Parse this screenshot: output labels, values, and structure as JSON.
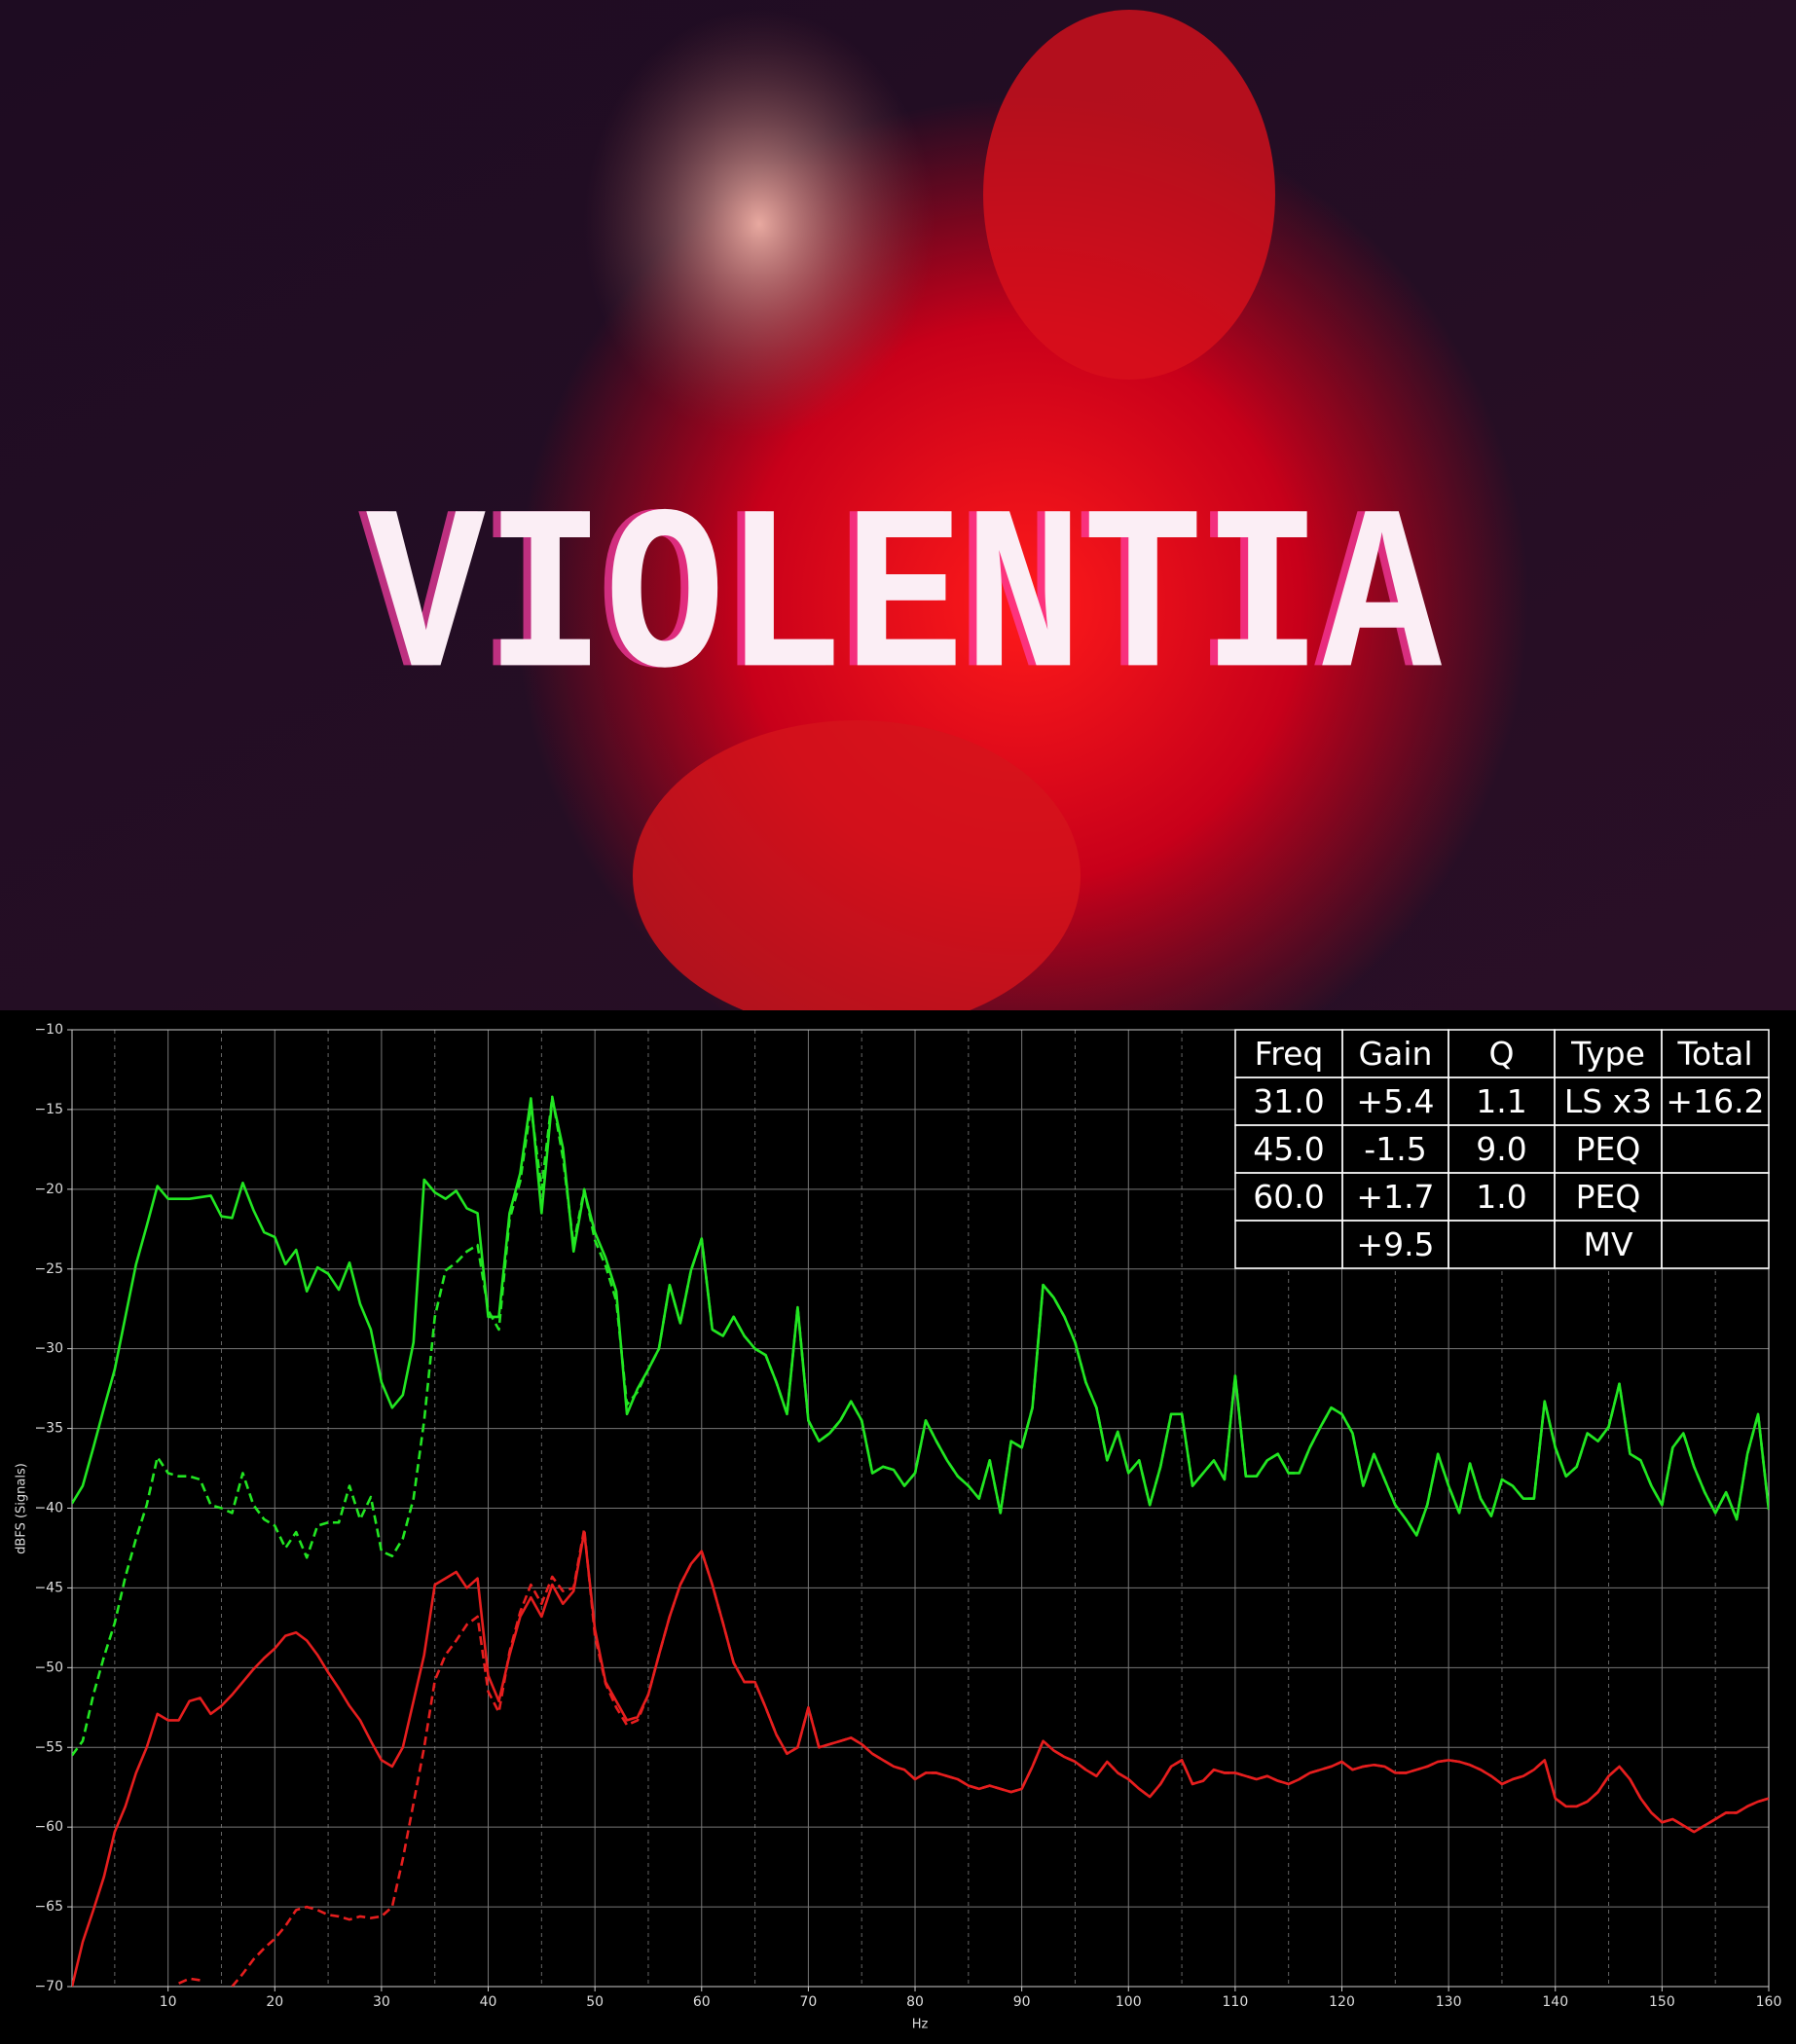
{
  "poster": {
    "title": "VIOLENTIA"
  },
  "chart_data": {
    "type": "line",
    "xlabel": "Hz",
    "ylabel": "dBFS (Signals)",
    "x": [
      1,
      2,
      3,
      4,
      5,
      6,
      7,
      8,
      9,
      10,
      11,
      12,
      13,
      14,
      15,
      16,
      17,
      18,
      19,
      20,
      21,
      22,
      23,
      24,
      25,
      26,
      27,
      28,
      29,
      30,
      31,
      32,
      33,
      34,
      35,
      36,
      37,
      38,
      39,
      40,
      41,
      42,
      43,
      44,
      45,
      46,
      47,
      48,
      49,
      50,
      51,
      52,
      53,
      54,
      55,
      56,
      57,
      58,
      59,
      60,
      61,
      62,
      63,
      64,
      65,
      66,
      67,
      68,
      69,
      70,
      71,
      72,
      73,
      74,
      75,
      76,
      77,
      78,
      79,
      80,
      81,
      82,
      83,
      84,
      85,
      86,
      87,
      88,
      89,
      90,
      91,
      92,
      93,
      94,
      95,
      96,
      97,
      98,
      99,
      100,
      101,
      102,
      103,
      104,
      105,
      106,
      107,
      108,
      109,
      110,
      111,
      112,
      113,
      114,
      115,
      116,
      117,
      118,
      119,
      120,
      121,
      122,
      123,
      124,
      125,
      126,
      127,
      128,
      129,
      130,
      131,
      132,
      133,
      134,
      135,
      136,
      137,
      138,
      139,
      140,
      141,
      142,
      143,
      144,
      145,
      146,
      147,
      148,
      149,
      150,
      151,
      152,
      153,
      154,
      155,
      156,
      157,
      158,
      159,
      160
    ],
    "series": [
      {
        "color": "#22e622",
        "style": "solid",
        "values": [
          -39.7,
          -38.6,
          -36.2,
          -33.7,
          -31.3,
          -28,
          -24.7,
          -22.3,
          -19.8,
          -20.6,
          -20.6,
          -20.6,
          -20.5,
          -20.4,
          -21.7,
          -21.8,
          -19.6,
          -21.3,
          -22.7,
          -23,
          -24.7,
          -23.8,
          -26.4,
          -24.9,
          -25.3,
          -26.3,
          -24.6,
          -27.2,
          -28.8,
          -32.1,
          -33.7,
          -32.9,
          -29.6,
          -19.4,
          -20.2,
          -20.6,
          -20.1,
          -21.2,
          -21.5,
          -28,
          -28,
          -21.5,
          -19,
          -14.3,
          -21.5,
          -14.3,
          -17.4,
          -23.9,
          -20.1,
          -22.7,
          -24.3,
          -26.4,
          -34.1,
          -32.5,
          -31.3,
          -30,
          -26,
          -28.4,
          -25.1,
          -23.1,
          -28.8,
          -29.2,
          -28,
          -29.2,
          -30,
          -30.4,
          -32.1,
          -34.1,
          -27.4,
          -34.5,
          -35.8,
          -35.3,
          -34.5,
          -33.3,
          -34.5,
          -37.8,
          -37.4,
          -37.6,
          -38.6,
          -37.8,
          -34.5,
          -35.8,
          -37,
          -38,
          -38.6,
          -39.4,
          -37,
          -40.3,
          -35.8,
          -36.2,
          -33.7,
          -26,
          -26.8,
          -28,
          -29.6,
          -32.1,
          -33.7,
          -37,
          -35.2,
          -37.8,
          -37,
          -39.8,
          -37.4,
          -34.1,
          -34.1,
          -38.6,
          -37.8,
          -37,
          -38.2,
          -31.7,
          -38,
          -38,
          -37,
          -36.6,
          -37.8,
          -37.8,
          -36.2,
          -34.9,
          -33.7,
          -34.1,
          -35.3,
          -38.6,
          -36.6,
          -38.2,
          -39.8,
          -40.7,
          -41.7,
          -39.8,
          -36.6,
          -38.6,
          -40.3,
          -37.2,
          -39.4,
          -40.5,
          -38.2,
          -38.6,
          -39.4,
          -39.4,
          -33.3,
          -36.2,
          -38,
          -37.4,
          -35.3,
          -35.8,
          -34.9,
          -32.2,
          -36.6,
          -37,
          -38.6,
          -39.8,
          -36.2,
          -35.3,
          -37.4,
          -39,
          -40.3,
          -39,
          -40.7,
          -36.6,
          -34.1,
          -40.1
        ]
      },
      {
        "color": "#22e622",
        "style": "dashed",
        "values": [
          -55.5,
          -54.6,
          -51.7,
          -49.3,
          -47.2,
          -44.3,
          -41.9,
          -39.8,
          -36.8,
          -37.8,
          -38,
          -38,
          -38.2,
          -39.8,
          -40,
          -40.3,
          -37.8,
          -39.8,
          -40.7,
          -41.1,
          -42.5,
          -41.5,
          -43.1,
          -41.1,
          -40.9,
          -40.9,
          -38.6,
          -40.7,
          -39.3,
          -42.7,
          -43,
          -41.9,
          -39.4,
          -34.5,
          -28,
          -25.1,
          -24.6,
          -23.9,
          -23.5,
          -27.6,
          -28.8,
          -21.9,
          -19.5,
          -14.8,
          -20,
          -14.2,
          -18,
          -23.5,
          -20,
          -23.2,
          -24.8,
          -27,
          -33.5,
          -32.7,
          -31.3,
          -30,
          -26,
          -28.4,
          -25.1,
          -23.1,
          -28.8,
          -29.2,
          -28,
          -29.2,
          -30,
          -30.4,
          -32.1,
          -34.1,
          -27.4,
          -34.5,
          -35.8,
          -35.3,
          -34.5,
          -33.3,
          -34.5,
          -37.8,
          -37.4,
          -37.6,
          -38.6,
          -37.8,
          -34.5,
          -35.8,
          -37,
          -38,
          -38.6,
          -39.4,
          -37,
          -40.3,
          -35.8,
          -36.2,
          -33.7,
          -26,
          -26.8,
          -28,
          -29.6,
          -32.1,
          -33.7,
          -37,
          -35.2,
          -37.8,
          -37,
          -39.8,
          -37.4,
          -34.1,
          -34.1,
          -38.6,
          -37.8,
          -37,
          -38.2,
          -31.7,
          -38,
          -38,
          -37,
          -36.6,
          -37.8,
          -37.8,
          -36.2,
          -34.9,
          -33.7,
          -34.1,
          -35.3,
          -38.6,
          -36.6,
          -38.2,
          -39.8,
          -40.7,
          -41.7,
          -39.8,
          -36.6,
          -38.6,
          -40.3,
          -37.2,
          -39.4,
          -40.5,
          -38.2,
          -38.6,
          -39.4,
          -39.4,
          -33.3,
          -36.2,
          -38,
          -37.4,
          -35.3,
          -35.8,
          -34.9,
          -32.2,
          -36.6,
          -37,
          -38.6,
          -39.8,
          -36.2,
          -35.3,
          -37.4,
          -39,
          -40.3,
          -39,
          -40.7,
          -36.6,
          -34.1,
          -40.1
        ]
      },
      {
        "color": "#e61e1e",
        "style": "solid",
        "values": [
          -70,
          -67.2,
          -65.2,
          -63.1,
          -60.3,
          -58.7,
          -56.6,
          -55,
          -52.9,
          -53.3,
          -53.3,
          -52.1,
          -51.9,
          -52.9,
          -52.4,
          -51.7,
          -50.9,
          -50.1,
          -49.4,
          -48.8,
          -48,
          -47.8,
          -48.3,
          -49.2,
          -50.3,
          -51.3,
          -52.4,
          -53.3,
          -54.6,
          -55.8,
          -56.2,
          -55,
          -52.1,
          -49.2,
          -44.8,
          -44.4,
          -44,
          -45,
          -44.4,
          -50.5,
          -52.1,
          -49.2,
          -46.8,
          -45.6,
          -46.8,
          -44.8,
          -46,
          -45.2,
          -41.5,
          -47.6,
          -50.9,
          -52.1,
          -53.3,
          -53.1,
          -51.7,
          -49.2,
          -46.8,
          -44.8,
          -43.5,
          -42.7,
          -44.8,
          -47.2,
          -49.7,
          -50.9,
          -50.9,
          -52.5,
          -54.2,
          -55.4,
          -55,
          -52.5,
          -55,
          -54.8,
          -54.6,
          -54.4,
          -54.8,
          -55.4,
          -55.8,
          -56.2,
          -56.4,
          -57,
          -56.6,
          -56.6,
          -56.8,
          -57,
          -57.4,
          -57.6,
          -57.4,
          -57.6,
          -57.8,
          -57.6,
          -56.2,
          -54.6,
          -55.2,
          -55.6,
          -55.9,
          -56.4,
          -56.8,
          -55.9,
          -56.6,
          -57,
          -57.6,
          -58.1,
          -57.3,
          -56.2,
          -55.8,
          -57.3,
          -57.1,
          -56.4,
          -56.6,
          -56.6,
          -56.8,
          -57,
          -56.8,
          -57.1,
          -57.3,
          -57,
          -56.6,
          -56.4,
          -56.2,
          -55.9,
          -56.4,
          -56.2,
          -56.1,
          -56.2,
          -56.6,
          -56.6,
          -56.4,
          -56.2,
          -55.9,
          -55.8,
          -55.9,
          -56.1,
          -56.4,
          -56.8,
          -57.3,
          -57,
          -56.8,
          -56.4,
          -55.8,
          -58.2,
          -58.7,
          -58.7,
          -58.4,
          -57.8,
          -56.8,
          -56.2,
          -57,
          -58.2,
          -59.1,
          -59.7,
          -59.5,
          -59.9,
          -60.3,
          -59.9,
          -59.5,
          -59.1,
          -59.1,
          -58.7,
          -58.4,
          -58.2
        ]
      },
      {
        "color": "#e61e1e",
        "style": "dashed",
        "values": [
          null,
          null,
          null,
          null,
          null,
          null,
          null,
          null,
          -70,
          null,
          -69.8,
          -69.5,
          -69.6,
          null,
          null,
          -70,
          -69.2,
          -68.3,
          -67.6,
          -67,
          -66.2,
          -65.2,
          -65,
          -65.2,
          -65.5,
          -65.6,
          -65.8,
          -65.6,
          -65.7,
          -65.6,
          -65,
          -62,
          -58.5,
          -55,
          -50.8,
          -49.2,
          -48.3,
          -47.3,
          -46.8,
          -51.5,
          -52.8,
          -49,
          -46.5,
          -44.8,
          -46,
          -44.3,
          -45.2,
          -45,
          -41.3,
          -48,
          -51,
          -52.5,
          -53.6,
          -53.3,
          -51.7,
          -49.2,
          -46.8,
          -44.8,
          -43.5,
          -42.7,
          -44.8,
          -47.2,
          -49.7,
          -50.9,
          -50.9,
          -52.5,
          -54.2,
          -55.4,
          -55,
          -52.5,
          -55,
          -54.8,
          -54.6,
          -54.4,
          -54.8,
          -55.4,
          -55.8,
          -56.2,
          -56.4,
          -57,
          -56.6,
          -56.6,
          -56.8,
          -57,
          -57.4,
          -57.6,
          -57.4,
          -57.6,
          -57.8,
          -57.6,
          -56.2,
          -54.6,
          -55.2,
          -55.6,
          -55.9,
          -56.4,
          -56.8,
          -55.9,
          -56.6,
          -57,
          -57.6,
          -58.1,
          -57.3,
          -56.2,
          -55.8,
          -57.3,
          -57.1,
          -56.4,
          -56.6,
          -56.6,
          -56.8,
          -57,
          -56.8,
          -57.1,
          -57.3,
          -57,
          -56.6,
          -56.4,
          -56.2,
          -55.9,
          -56.4,
          -56.2,
          -56.1,
          -56.2,
          -56.6,
          -56.6,
          -56.4,
          -56.2,
          -55.9,
          -55.8,
          -55.9,
          -56.1,
          -56.4,
          -56.8,
          -57.3,
          -57,
          -56.8,
          -56.4,
          -55.8,
          -58.2,
          -58.7,
          -58.7,
          -58.4,
          -57.8,
          -56.8,
          -56.2,
          -57,
          -58.2,
          -59.1,
          -59.7,
          -59.5,
          -59.9,
          -60.3,
          -59.9,
          -59.5,
          -59.1,
          -59.1,
          -58.7,
          -58.4,
          -58.2
        ]
      }
    ],
    "xlim": [
      1,
      160
    ],
    "ylim": [
      -70,
      -10
    ],
    "xticks": [
      10,
      20,
      30,
      40,
      50,
      60,
      70,
      80,
      90,
      100,
      110,
      120,
      130,
      140,
      150,
      160
    ],
    "xticks_minor": [
      5,
      15,
      25,
      35,
      45,
      55,
      65,
      75,
      85,
      95,
      105,
      115,
      125,
      135,
      145,
      155
    ],
    "yticks": [
      {
        "value": -10,
        "label": "−10"
      },
      {
        "value": -15,
        "label": "−15"
      },
      {
        "value": -20,
        "label": "−20"
      },
      {
        "value": -25,
        "label": "−25"
      },
      {
        "value": -30,
        "label": "−30"
      },
      {
        "value": -35,
        "label": "−35"
      },
      {
        "value": -40,
        "label": "−40"
      },
      {
        "value": -45,
        "label": "−45"
      },
      {
        "value": -50,
        "label": "−50"
      },
      {
        "value": -55,
        "label": "−55"
      },
      {
        "value": -60,
        "label": "−60"
      },
      {
        "value": -65,
        "label": "−65"
      },
      {
        "value": -70,
        "label": "−70"
      }
    ],
    "grid": true
  },
  "eq_table": {
    "header": [
      "Freq",
      "Gain",
      "Q",
      "Type",
      "Total"
    ],
    "rows": [
      [
        "31.0",
        "+5.4",
        "1.1",
        "LS x3",
        "+16.2"
      ],
      [
        "45.0",
        "-1.5",
        "9.0",
        "PEQ",
        null
      ],
      [
        "60.0",
        "+1.7",
        "1.0",
        "PEQ",
        null
      ],
      [
        null,
        "+9.5",
        null,
        "MV",
        null
      ]
    ]
  }
}
